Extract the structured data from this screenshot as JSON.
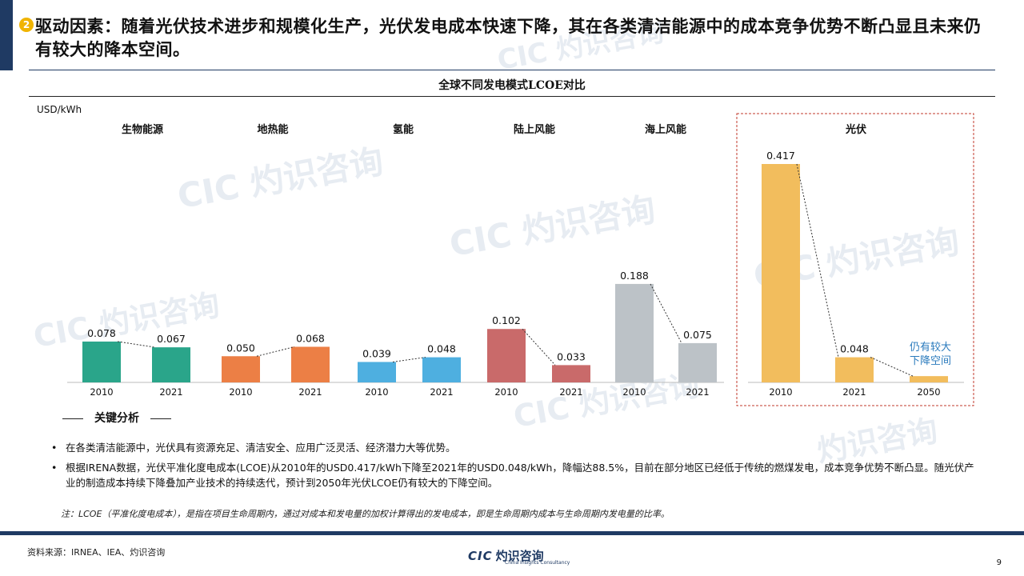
{
  "header": {
    "badge": "2",
    "title": "驱动因素：随着光伏技术进步和规模化生产，光伏发电成本快速下降，其在各类清洁能源中的成本竞争优势不断凸显且未来仍有较大的降本空间。"
  },
  "chart_data": {
    "type": "bar",
    "title": "全球不同发电模式LCOE对比",
    "ylabel": "USD/kWh",
    "groups": [
      {
        "name": "生物能源",
        "x": [
          "2010",
          "2021"
        ],
        "values": [
          0.078,
          0.067
        ],
        "labels": [
          "0.078",
          "0.067"
        ],
        "color": "#2aa58a"
      },
      {
        "name": "地热能",
        "x": [
          "2010",
          "2021"
        ],
        "values": [
          0.05,
          0.068
        ],
        "labels": [
          "0.050",
          "0.068"
        ],
        "color": "#ec7f45"
      },
      {
        "name": "氢能",
        "x": [
          "2010",
          "2021"
        ],
        "values": [
          0.039,
          0.048
        ],
        "labels": [
          "0.039",
          "0.048"
        ],
        "color": "#4eafe0"
      },
      {
        "name": "陆上风能",
        "x": [
          "2010",
          "2021"
        ],
        "values": [
          0.102,
          0.033
        ],
        "labels": [
          "0.102",
          "0.033"
        ],
        "color": "#c96a6a"
      },
      {
        "name": "海上风能",
        "x": [
          "2010",
          "2021"
        ],
        "values": [
          0.188,
          0.075
        ],
        "labels": [
          "0.188",
          "0.075"
        ],
        "color": "#bcc2c7"
      },
      {
        "name": "光伏",
        "x": [
          "2010",
          "2021",
          "2050"
        ],
        "values": [
          0.417,
          0.048,
          0.012
        ],
        "labels": [
          "0.417",
          "0.048",
          ""
        ],
        "color": "#f2bd5d",
        "highlight": true
      }
    ],
    "annotation": {
      "line1": "仍有较大",
      "line2": "下降空间"
    },
    "ylim": [
      0,
      0.45
    ],
    "grid": false
  },
  "analysis": {
    "heading": "关键分析",
    "bullets": [
      "在各类清洁能源中，光伏具有资源充足、清洁安全、应用广泛灵活、经济潜力大等优势。",
      "根据IRENA数据，光伏平准化度电成本(LCOE)从2010年的USD0.417/kWh下降至2021年的USD0.048/kWh，降幅达88.5%，目前在部分地区已经低于传统的燃煤发电，成本竞争优势不断凸显。随光伏产业的制造成本持续下降叠加产业技术的持续迭代，预计到2050年光伏LCOE仍有较大的下降空间。"
    ],
    "note": "注：LCOE（平准化度电成本），是指在项目生命周期内，通过对成本和发电量的加权计算得出的发电成本，即是生命周期内成本与生命周期内发电量的比率。"
  },
  "footer": {
    "source": "资料来源：IRNEA、IEA、灼识咨询",
    "logo_cic": "CIC",
    "logo_cn": "灼识咨询",
    "logo_en": "China Insights Consultancy",
    "page": "9"
  }
}
